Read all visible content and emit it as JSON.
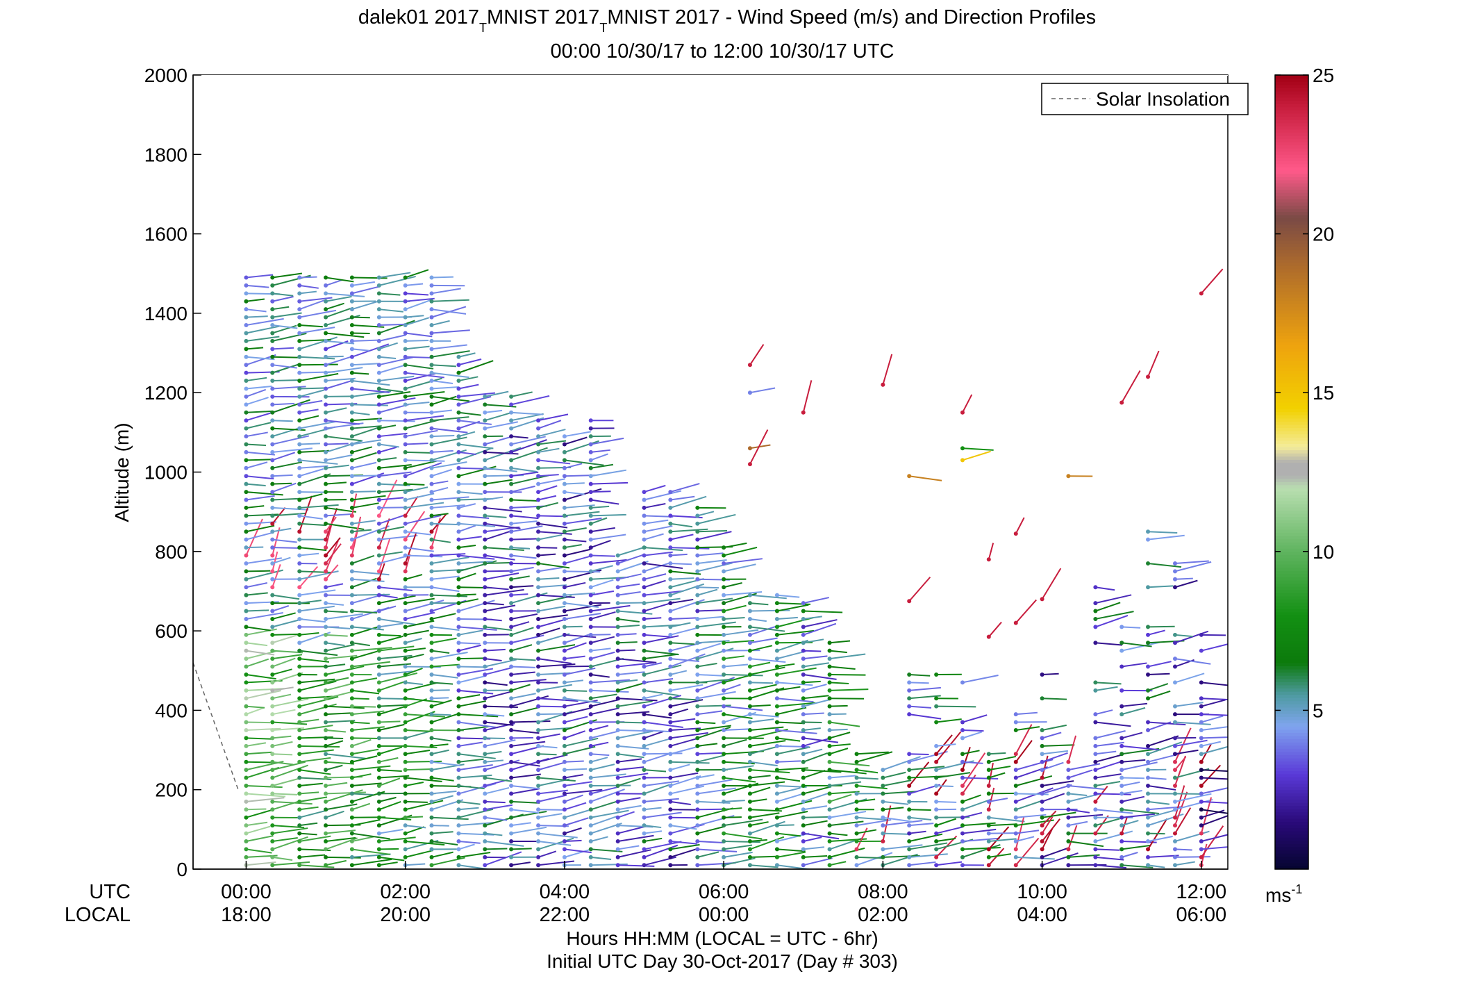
{
  "chart_data": {
    "type": "scatter",
    "title_prefix": "dalek01 2017",
    "title_sub_1": "T",
    "title_mid": "MNIST 2017",
    "title_sub_2": "T",
    "title_suffix": "MNIST 2017 - Wind Speed (m/s) and Direction Profiles",
    "subtitle": "00:00 10/30/17 to 12:00 10/30/17  UTC",
    "ylabel": "Altitude (m)",
    "xlabel": "Hours HH:MM  (LOCAL = UTC - 6hr)",
    "xlabel2": "Initial UTC Day 30-Oct-2017 (Day # 303)",
    "utc_row_label": "UTC",
    "local_row_label": "LOCAL",
    "xlim": [
      -0.667,
      12.333
    ],
    "ylim": [
      0,
      2000
    ],
    "y_ticks": [
      0,
      200,
      400,
      600,
      800,
      1000,
      1200,
      1400,
      1600,
      1800,
      2000
    ],
    "x_ticks_utc": [
      {
        "hour": 0,
        "label": "00:00"
      },
      {
        "hour": 2,
        "label": "02:00"
      },
      {
        "hour": 4,
        "label": "04:00"
      },
      {
        "hour": 6,
        "label": "06:00"
      },
      {
        "hour": 8,
        "label": "08:00"
      },
      {
        "hour": 10,
        "label": "10:00"
      },
      {
        "hour": 12,
        "label": "12:00"
      }
    ],
    "x_ticks_local": [
      "18:00",
      "20:00",
      "22:00",
      "00:00",
      "02:00",
      "04:00",
      "06:00"
    ],
    "legend": {
      "entry": "Solar Insolation",
      "placement": "top-right",
      "style": "dashed"
    },
    "solar_insolation": {
      "x": [
        -0.667,
        -0.1
      ],
      "y": [
        520,
        200
      ]
    },
    "colorbar": {
      "range": [
        0,
        25
      ],
      "ticks": [
        5,
        10,
        15,
        20,
        25
      ],
      "unit_base": "ms",
      "unit_exp": "-1",
      "stops": [
        {
          "v": 0,
          "color": "#050530"
        },
        {
          "v": 1.5,
          "color": "#2a0a7a"
        },
        {
          "v": 3,
          "color": "#5a3ad8"
        },
        {
          "v": 4.5,
          "color": "#7fa4ef"
        },
        {
          "v": 5.5,
          "color": "#4e9aa0"
        },
        {
          "v": 6.5,
          "color": "#0c7a0c"
        },
        {
          "v": 8,
          "color": "#139013"
        },
        {
          "v": 10,
          "color": "#5fb45f"
        },
        {
          "v": 12,
          "color": "#b9deb0"
        },
        {
          "v": 12.4,
          "color": "#b0b0b0"
        },
        {
          "v": 12.8,
          "color": "#b0b0b0"
        },
        {
          "v": 13.3,
          "color": "#f4ec9a"
        },
        {
          "v": 14.5,
          "color": "#f2d100"
        },
        {
          "v": 16.5,
          "color": "#eea30e"
        },
        {
          "v": 19,
          "color": "#ad6b2c"
        },
        {
          "v": 20.5,
          "color": "#7a4a45"
        },
        {
          "v": 22,
          "color": "#ff5a8a"
        },
        {
          "v": 24,
          "color": "#c81d3d"
        },
        {
          "v": 25,
          "color": "#a10014"
        }
      ]
    },
    "profiles": [
      {
        "t": 0.0,
        "top": 1490,
        "base_speed": 10
      },
      {
        "t": 0.33,
        "top": 1490,
        "base_speed": 10
      },
      {
        "t": 0.67,
        "top": 1490,
        "base_speed": 7
      },
      {
        "t": 1.0,
        "top": 1490,
        "base_speed": 8
      },
      {
        "t": 1.33,
        "top": 1490,
        "base_speed": 8
      },
      {
        "t": 1.67,
        "top": 1490,
        "base_speed": 7
      },
      {
        "t": 2.0,
        "top": 1490,
        "base_speed": 7
      },
      {
        "t": 2.33,
        "top": 1490,
        "base_speed": 7
      },
      {
        "t": 2.67,
        "top": 1300,
        "base_speed": 5
      },
      {
        "t": 3.0,
        "top": 1200,
        "base_speed": 4
      },
      {
        "t": 3.33,
        "top": 1200,
        "base_speed": 4
      },
      {
        "t": 3.67,
        "top": 1130,
        "base_speed": 4
      },
      {
        "t": 4.0,
        "top": 1100,
        "base_speed": 4
      },
      {
        "t": 4.33,
        "top": 1130,
        "base_speed": 4
      },
      {
        "t": 4.67,
        "top": 790,
        "base_speed": 4
      },
      {
        "t": 5.0,
        "top": 960,
        "base_speed": 4
      },
      {
        "t": 5.33,
        "top": 960,
        "base_speed": 4
      },
      {
        "t": 5.67,
        "top": 920,
        "base_speed": 5
      },
      {
        "t": 6.0,
        "top": 810,
        "base_speed": 6
      },
      {
        "t": 6.33,
        "top": 700,
        "base_speed": 6
      },
      {
        "t": 6.67,
        "top": 700,
        "base_speed": 6
      },
      {
        "t": 7.0,
        "top": 680,
        "base_speed": 5
      },
      {
        "t": 7.33,
        "top": 570,
        "base_speed": 7
      },
      {
        "t": 7.67,
        "top": 300,
        "base_speed": 6
      },
      {
        "t": 8.0,
        "top": 260,
        "base_speed": 6
      },
      {
        "t": 8.33,
        "top": 500,
        "base_speed": 5
      },
      {
        "t": 8.67,
        "top": 520,
        "base_speed": 5
      },
      {
        "t": 9.0,
        "top": 500,
        "base_speed": 5
      },
      {
        "t": 9.33,
        "top": 300,
        "base_speed": 5
      },
      {
        "t": 9.67,
        "top": 400,
        "base_speed": 5
      },
      {
        "t": 10.0,
        "top": 500,
        "base_speed": 4
      },
      {
        "t": 10.33,
        "top": 280,
        "base_speed": 4
      },
      {
        "t": 10.67,
        "top": 800,
        "base_speed": 4
      },
      {
        "t": 11.0,
        "top": 620,
        "base_speed": 4
      },
      {
        "t": 11.33,
        "top": 850,
        "base_speed": 4
      },
      {
        "t": 11.67,
        "top": 780,
        "base_speed": 4
      },
      {
        "t": 12.0,
        "top": 600,
        "base_speed": 3
      }
    ],
    "isolated_points": [
      {
        "t": 6.33,
        "alt": 1270,
        "speed": 24
      },
      {
        "t": 6.33,
        "alt": 1200,
        "speed": 4
      },
      {
        "t": 6.33,
        "alt": 1060,
        "speed": 19
      },
      {
        "t": 6.33,
        "alt": 1020,
        "speed": 24
      },
      {
        "t": 7.0,
        "alt": 1150,
        "speed": 24
      },
      {
        "t": 8.0,
        "alt": 1220,
        "speed": 24
      },
      {
        "t": 8.33,
        "alt": 990,
        "speed": 18
      },
      {
        "t": 8.33,
        "alt": 675,
        "speed": 24
      },
      {
        "t": 9.0,
        "alt": 1150,
        "speed": 24
      },
      {
        "t": 9.0,
        "alt": 1060,
        "speed": 8
      },
      {
        "t": 9.0,
        "alt": 1030,
        "speed": 15
      },
      {
        "t": 9.33,
        "alt": 780,
        "speed": 24
      },
      {
        "t": 9.33,
        "alt": 585,
        "speed": 24
      },
      {
        "t": 9.67,
        "alt": 845,
        "speed": 24
      },
      {
        "t": 9.67,
        "alt": 620,
        "speed": 24
      },
      {
        "t": 10.0,
        "alt": 680,
        "speed": 24
      },
      {
        "t": 10.33,
        "alt": 990,
        "speed": 18
      },
      {
        "t": 11.0,
        "alt": 1175,
        "speed": 24
      },
      {
        "t": 11.33,
        "alt": 1240,
        "speed": 24
      },
      {
        "t": 12.0,
        "alt": 1450,
        "speed": 24
      }
    ]
  }
}
